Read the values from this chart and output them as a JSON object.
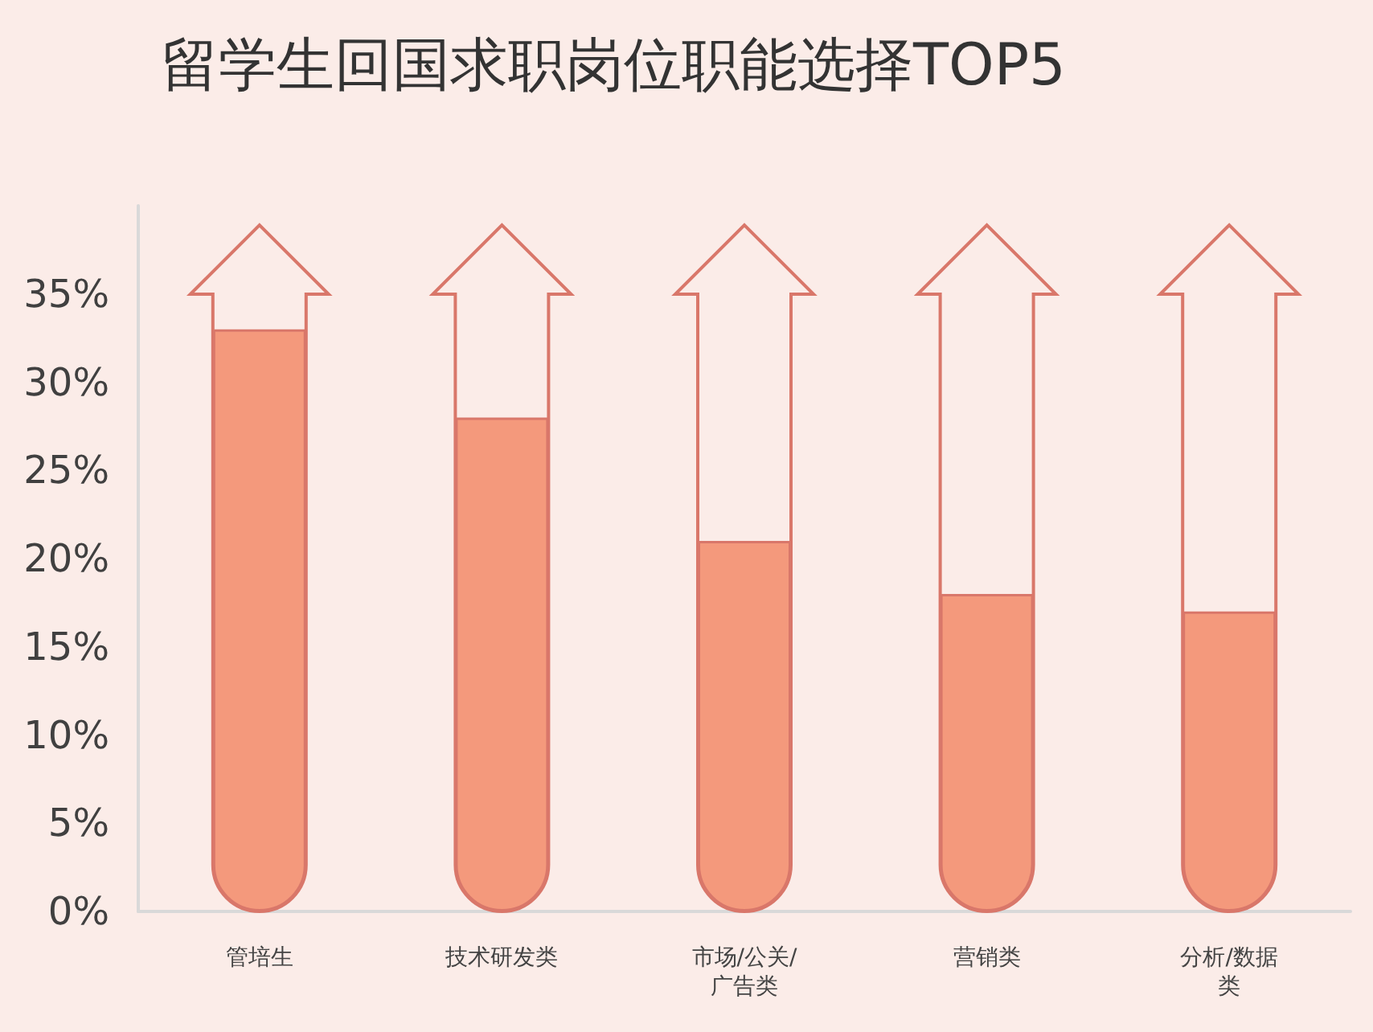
{
  "chart_data": {
    "type": "bar",
    "title": "留学生回国求职岗位职能选择TOP5",
    "categories": [
      "管培生",
      "技术研发类",
      "市场/公关/广告类",
      "营销类",
      "分析/数据类"
    ],
    "values": [
      33,
      28,
      21,
      18,
      17
    ],
    "color": "#f4997c",
    "ylim": [
      0,
      40
    ],
    "yticks": [
      {
        "value": 0,
        "label": "0%"
      },
      {
        "value": 5,
        "label": "5%"
      },
      {
        "value": 10,
        "label": "10%"
      },
      {
        "value": 15,
        "label": "15%"
      },
      {
        "value": 20,
        "label": "20%"
      },
      {
        "value": 25,
        "label": "25%"
      },
      {
        "value": 30,
        "label": "30%"
      },
      {
        "value": 35,
        "label": "35%"
      }
    ],
    "grid": false
  }
}
